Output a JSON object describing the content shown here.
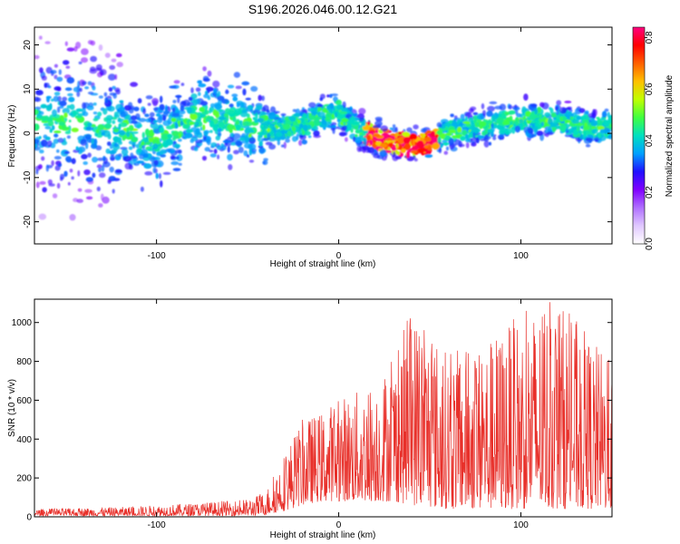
{
  "title": "S196.2026.046.00.12.G21",
  "chart_data": [
    {
      "type": "heatmap",
      "title": "S196.2026.046.00.12.G21",
      "xlabel": "Height of straight line (km)",
      "ylabel": "Frequency (Hz)",
      "xlim": [
        -167,
        150
      ],
      "ylim": [
        -25,
        24
      ],
      "xticks": [
        -100,
        0,
        100
      ],
      "xtick_labels": [
        "-100",
        "0",
        "100"
      ],
      "yticks": [
        -20,
        -10,
        0,
        10,
        20
      ],
      "ytick_labels": [
        "-20",
        "-10",
        "0",
        "10",
        "20"
      ],
      "ridge": {
        "x": [
          -160,
          -140,
          -120,
          -100,
          -80,
          -60,
          -40,
          -20,
          0,
          10,
          20,
          30,
          40,
          50,
          60,
          80,
          100,
          120,
          140,
          150
        ],
        "y": [
          3,
          2,
          1,
          -2,
          4,
          3,
          1,
          2,
          5,
          1,
          -1,
          -2,
          -3,
          -2,
          0,
          2,
          3,
          3,
          1,
          2
        ]
      },
      "colorbar": {
        "label": "Normalized spectral amplitude",
        "range": [
          0.0,
          0.84
        ],
        "ticks": [
          0.0,
          0.2,
          0.4,
          0.6,
          0.8
        ],
        "tick_labels": [
          "0.0",
          "0.2",
          "0.4",
          "0.6",
          "0.8"
        ],
        "colors": [
          "#ffffff",
          "#e0c8ff",
          "#b070ff",
          "#8000ff",
          "#2010ff",
          "#00a0ff",
          "#00e0c0",
          "#40ff40",
          "#c0ff00",
          "#ffc000",
          "#ff6000",
          "#ff0000",
          "#ff0080"
        ]
      }
    },
    {
      "type": "line",
      "xlabel": "Height of straight line (km)",
      "ylabel": "SNR (10 * v/v)",
      "xlim": [
        -167,
        150
      ],
      "ylim": [
        0,
        1120
      ],
      "xticks": [
        -100,
        0,
        100
      ],
      "xtick_labels": [
        "-100",
        "0",
        "100"
      ],
      "yticks": [
        0,
        200,
        400,
        600,
        800,
        1000
      ],
      "ytick_labels": [
        "0",
        "200",
        "400",
        "600",
        "800",
        "1000"
      ],
      "series": [
        {
          "name": "SNR",
          "color": "#e8302a",
          "envelope": {
            "x": [
              -167,
              -120,
              -80,
              -50,
              -40,
              -30,
              -20,
              -10,
              0,
              10,
              20,
              30,
              40,
              60,
              80,
              100,
              120,
              150
            ],
            "low": [
              5,
              5,
              5,
              5,
              10,
              30,
              60,
              80,
              80,
              80,
              80,
              80,
              60,
              40,
              40,
              40,
              40,
              40
            ],
            "high": [
              40,
              50,
              70,
              90,
              130,
              330,
              500,
              540,
              620,
              650,
              700,
              820,
              1080,
              850,
              900,
              1050,
              1120,
              800
            ]
          }
        }
      ]
    }
  ]
}
